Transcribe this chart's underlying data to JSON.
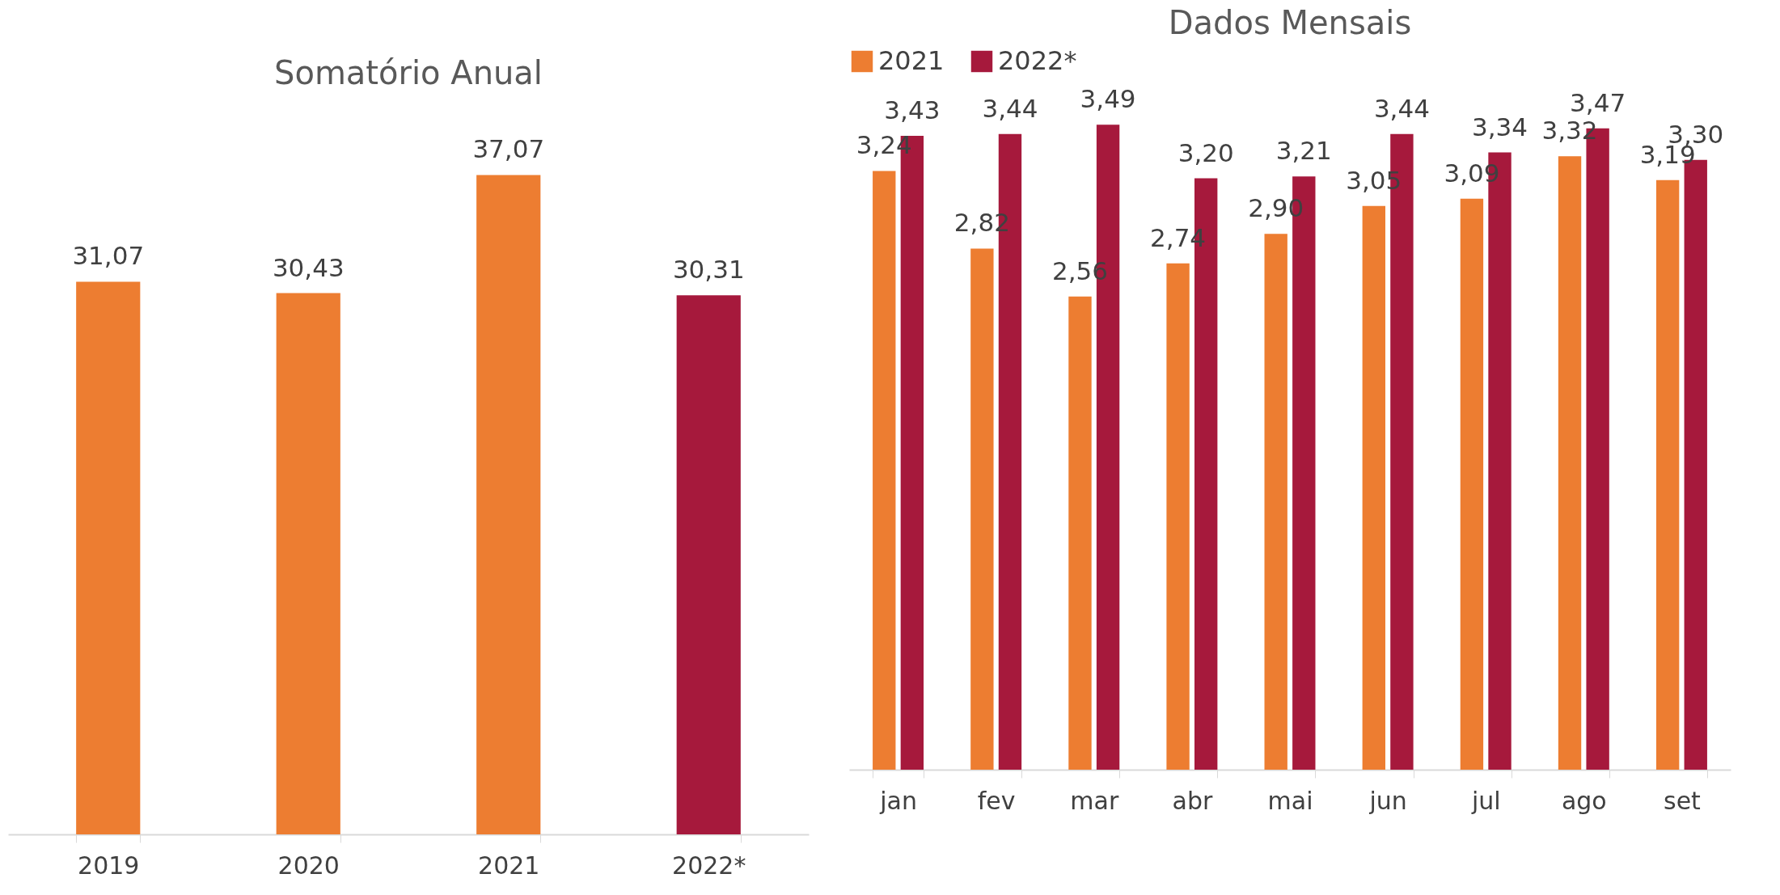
{
  "chart_data": [
    {
      "type": "bar",
      "title": "Somatório Anual",
      "categories": [
        "2019",
        "2020",
        "2021",
        "2022*"
      ],
      "values": [
        31.07,
        30.43,
        37.07,
        30.31
      ],
      "colors": [
        "#ed7d31",
        "#ed7d31",
        "#ed7d31",
        "#a6193c"
      ],
      "value_labels": [
        "31,07",
        "30,43",
        "37,07",
        "30,31"
      ],
      "grid": false
    },
    {
      "type": "bar",
      "title": "Dados Mensais",
      "categories": [
        "jan",
        "fev",
        "mar",
        "abr",
        "mai",
        "jun",
        "jul",
        "ago",
        "set"
      ],
      "legend": "top",
      "grid": false,
      "series": [
        {
          "name": "2021",
          "color": "#ed7d31",
          "values": [
            3.24,
            2.82,
            2.56,
            2.74,
            2.9,
            3.05,
            3.09,
            3.32,
            3.19
          ],
          "value_labels": [
            "3,24",
            "2,82",
            "2,56",
            "2,74",
            "2,90",
            "3,05",
            "3,09",
            "3,32",
            "3,19"
          ]
        },
        {
          "name": "2022*",
          "color": "#a6193c",
          "values": [
            3.43,
            3.44,
            3.49,
            3.2,
            3.21,
            3.44,
            3.34,
            3.47,
            3.3
          ],
          "value_labels": [
            "3,43",
            "3,44",
            "3,49",
            "3,20",
            "3,21",
            "3,44",
            "3,34",
            "3,47",
            "3,30"
          ]
        }
      ]
    }
  ]
}
